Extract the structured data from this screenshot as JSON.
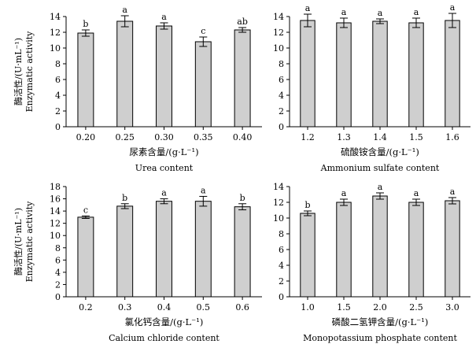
{
  "chart_data": [
    {
      "type": "bar",
      "panel": "top-left",
      "categories": [
        "0.20",
        "0.25",
        "0.30",
        "0.35",
        "0.40"
      ],
      "values": [
        11.9,
        13.4,
        12.8,
        10.8,
        12.3
      ],
      "errors": [
        0.4,
        0.7,
        0.4,
        0.6,
        0.3
      ],
      "letters": [
        "b",
        "a",
        "a",
        "c",
        "ab"
      ],
      "ylim": [
        0,
        14
      ],
      "yticks": [
        "0",
        "2",
        "4",
        "6",
        "8",
        "10",
        "12",
        "14"
      ],
      "ylabel_cn": "酶活性/(U·mL⁻¹)",
      "ylabel_en": "Enzymatic activity",
      "xlabel_cn": "尿素含量/(g·L⁻¹)",
      "xlabel_en": "Urea content"
    },
    {
      "type": "bar",
      "panel": "top-right",
      "categories": [
        "1.2",
        "1.3",
        "1.4",
        "1.5",
        "1.6"
      ],
      "values": [
        13.5,
        13.2,
        13.4,
        13.2,
        13.5
      ],
      "errors": [
        0.8,
        0.6,
        0.3,
        0.6,
        0.9
      ],
      "letters": [
        "a",
        "a",
        "a",
        "a",
        "a"
      ],
      "ylim": [
        0,
        14
      ],
      "yticks": [
        "0",
        "2",
        "4",
        "6",
        "8",
        "10",
        "12",
        "14"
      ],
      "ylabel_cn": "",
      "ylabel_en": "",
      "xlabel_cn": "硫酸铵含量/(g·L⁻¹)",
      "xlabel_en": "Ammonium sulfate content"
    },
    {
      "type": "bar",
      "panel": "bottom-left",
      "categories": [
        "0.2",
        "0.3",
        "0.4",
        "0.5",
        "0.6"
      ],
      "values": [
        13.0,
        14.8,
        15.6,
        15.6,
        14.7
      ],
      "errors": [
        0.2,
        0.4,
        0.4,
        0.8,
        0.5
      ],
      "letters": [
        "c",
        "b",
        "a",
        "a",
        "b"
      ],
      "ylim": [
        0,
        18
      ],
      "yticks": [
        "0",
        "2",
        "4",
        "6",
        "8",
        "10",
        "12",
        "14",
        "16",
        "18"
      ],
      "ylabel_cn": "酶活性/(U·mL⁻¹)",
      "ylabel_en": "Enzymatic activity",
      "xlabel_cn": "氯化钙含量/(g·L⁻¹)",
      "xlabel_en": "Calcium chloride content"
    },
    {
      "type": "bar",
      "panel": "bottom-right",
      "categories": [
        "1.0",
        "1.5",
        "2.0",
        "2.5",
        "3.0"
      ],
      "values": [
        10.6,
        12.0,
        12.8,
        12.0,
        12.2
      ],
      "errors": [
        0.3,
        0.4,
        0.4,
        0.4,
        0.4
      ],
      "letters": [
        "b",
        "a",
        "a",
        "a",
        "a"
      ],
      "ylim": [
        0,
        14
      ],
      "yticks": [
        "0",
        "2",
        "4",
        "6",
        "8",
        "10",
        "12",
        "14"
      ],
      "ylabel_cn": "",
      "ylabel_en": "",
      "xlabel_cn": "磷酸二氢钾含量/(g·L⁻¹)",
      "xlabel_en": "Monopotassium phosphate content"
    }
  ],
  "colors": {
    "bar_fill": "#cfcfcf",
    "bar_stroke": "#000000",
    "axis": "#000000"
  }
}
